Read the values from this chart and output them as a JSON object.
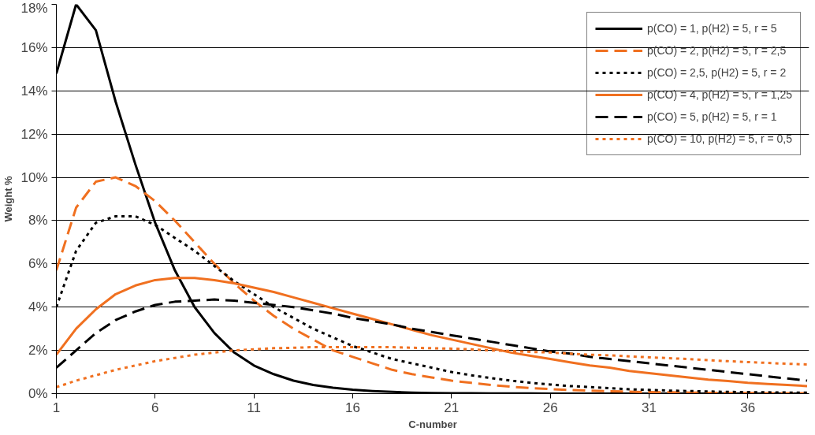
{
  "chart_data": {
    "type": "line",
    "xlabel": "C-number",
    "ylabel": "Weight %",
    "x": [
      1,
      2,
      3,
      4,
      5,
      6,
      7,
      8,
      9,
      10,
      11,
      12,
      13,
      14,
      15,
      16,
      17,
      18,
      19,
      20,
      21,
      22,
      23,
      24,
      25,
      26,
      27,
      28,
      29,
      30,
      31,
      32,
      33,
      34,
      35,
      36,
      37,
      38,
      39
    ],
    "xlim": [
      1,
      39.1
    ],
    "xticks": [
      1,
      6,
      11,
      16,
      21,
      26,
      31,
      36
    ],
    "ylim": [
      0,
      18
    ],
    "yticks": [
      {
        "value": 0,
        "label": "0%"
      },
      {
        "value": 2,
        "label": "2%"
      },
      {
        "value": 4,
        "label": "4%"
      },
      {
        "value": 6,
        "label": "6%"
      },
      {
        "value": 8,
        "label": "8%"
      },
      {
        "value": 10,
        "label": "10%"
      },
      {
        "value": 12,
        "label": "12%"
      },
      {
        "value": 14,
        "label": "14%"
      },
      {
        "value": 16,
        "label": "16%"
      },
      {
        "value": 18,
        "label": "18%"
      }
    ],
    "grid": "y",
    "legend": "top right",
    "marker": "none",
    "series": [
      {
        "name": "p(CO) = 1, p(H2) = 5, r = 5",
        "color": "#000000",
        "line_style": "solid",
        "values": [
          14.8,
          18,
          16.8,
          13.5,
          10.6,
          7.9,
          5.7,
          4.0,
          2.8,
          1.9,
          1.3,
          0.9,
          0.6,
          0.4,
          0.27,
          0.18,
          0.12,
          0.08,
          0.05,
          0.03,
          0.02,
          0.02,
          0.01,
          0.01,
          0.01,
          0,
          0,
          0,
          0,
          0,
          0,
          0,
          0,
          0,
          0,
          0,
          0,
          0,
          0
        ]
      },
      {
        "name": "p(CO) = 2, p(H2) = 5, r = 2,5",
        "color": "#f07020",
        "line_style": "dashed",
        "values": [
          5.7,
          8.6,
          9.8,
          10.0,
          9.6,
          8.9,
          8.0,
          7.0,
          6.0,
          5.1,
          4.3,
          3.6,
          3.0,
          2.5,
          2.0,
          1.7,
          1.4,
          1.1,
          0.9,
          0.75,
          0.6,
          0.5,
          0.4,
          0.32,
          0.26,
          0.21,
          0.17,
          0.14,
          0.11,
          0.09,
          0.07,
          0.06,
          0.05,
          0.04,
          0.03,
          0.03,
          0.02,
          0.02,
          0.02
        ]
      },
      {
        "name": "p(CO) = 2,5, p(H2) = 5, r = 2",
        "color": "#000000",
        "line_style": "dotted",
        "values": [
          4.0,
          6.6,
          7.9,
          8.2,
          8.2,
          7.8,
          7.2,
          6.6,
          5.9,
          5.2,
          4.6,
          4.0,
          3.5,
          3.0,
          2.6,
          2.2,
          1.9,
          1.6,
          1.4,
          1.2,
          1.0,
          0.85,
          0.72,
          0.6,
          0.5,
          0.42,
          0.35,
          0.3,
          0.25,
          0.2,
          0.17,
          0.14,
          0.12,
          0.1,
          0.08,
          0.07,
          0.06,
          0.05,
          0.05
        ]
      },
      {
        "name": "p(CO) = 4, p(H2) = 5, r = 1,25",
        "color": "#f07020",
        "line_style": "solid",
        "values": [
          1.8,
          3.0,
          3.9,
          4.6,
          5.0,
          5.25,
          5.35,
          5.35,
          5.25,
          5.1,
          4.9,
          4.7,
          4.45,
          4.2,
          3.95,
          3.7,
          3.45,
          3.2,
          2.95,
          2.7,
          2.5,
          2.3,
          2.1,
          1.9,
          1.75,
          1.6,
          1.45,
          1.3,
          1.2,
          1.05,
          0.95,
          0.85,
          0.75,
          0.65,
          0.58,
          0.5,
          0.45,
          0.4,
          0.35
        ]
      },
      {
        "name": "p(CO) = 5, p(H2) = 5, r = 1",
        "color": "#000000",
        "line_style": "dashed",
        "values": [
          1.2,
          2.0,
          2.8,
          3.4,
          3.8,
          4.1,
          4.25,
          4.3,
          4.35,
          4.3,
          4.2,
          4.1,
          4.0,
          3.85,
          3.7,
          3.5,
          3.35,
          3.2,
          3.0,
          2.85,
          2.7,
          2.55,
          2.4,
          2.25,
          2.1,
          1.95,
          1.85,
          1.7,
          1.6,
          1.5,
          1.4,
          1.3,
          1.2,
          1.1,
          1.0,
          0.9,
          0.8,
          0.7,
          0.6
        ]
      },
      {
        "name": "p(CO) = 10, p(H2) = 5, r = 0,5",
        "color": "#f07020",
        "line_style": "dotted",
        "values": [
          0.3,
          0.6,
          0.85,
          1.1,
          1.3,
          1.5,
          1.65,
          1.8,
          1.9,
          2.0,
          2.05,
          2.1,
          2.12,
          2.15,
          2.15,
          2.15,
          2.15,
          2.15,
          2.12,
          2.1,
          2.08,
          2.05,
          2.0,
          1.97,
          1.93,
          1.9,
          1.85,
          1.8,
          1.77,
          1.72,
          1.68,
          1.64,
          1.6,
          1.55,
          1.5,
          1.46,
          1.42,
          1.38,
          1.35
        ]
      }
    ]
  }
}
